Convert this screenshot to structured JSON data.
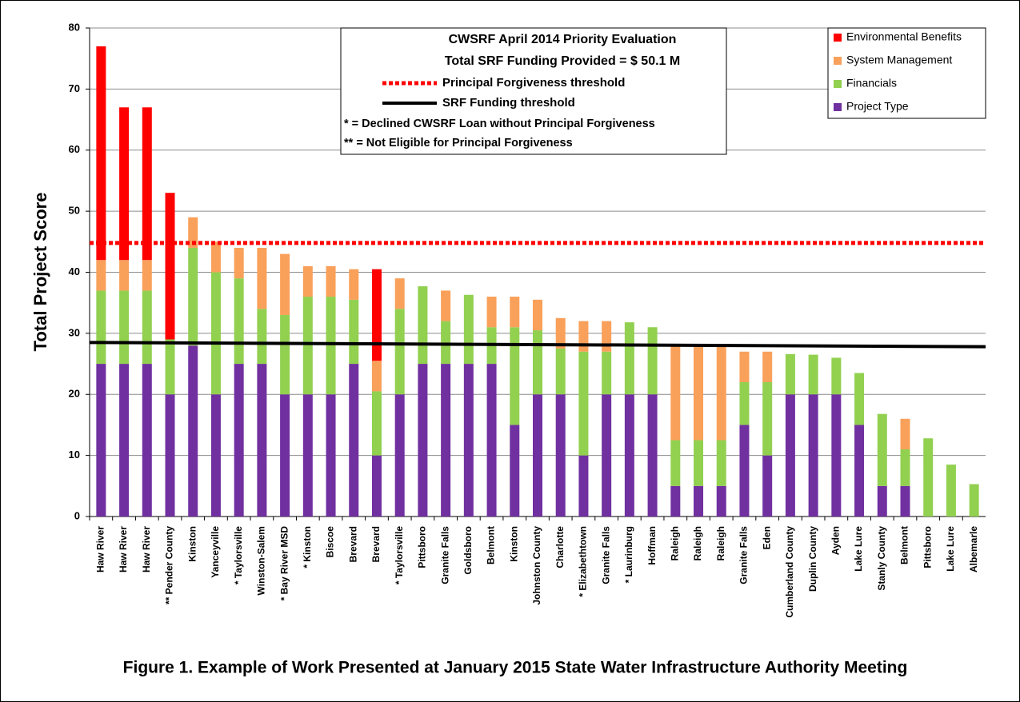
{
  "chart_data": {
    "type": "stacked_bar",
    "ylabel": "Total Project Score",
    "caption": "Figure 1. Example of Work Presented at January 2015 State Water Infrastructure Authority Meeting",
    "annotation": {
      "title": "CWSRF April 2014 Priority Evaluation",
      "subtitle": "Total SRF Funding Provided = $ 50.1 M",
      "notes": [
        "*   = Declined CWSRF Loan without Principal Forgiveness",
        "** = Not Eligible for Principal Forgiveness"
      ]
    },
    "categories": [
      "Haw River",
      "Haw River",
      "Haw River",
      "** Pender County",
      "Kinston",
      "Yanceyville",
      "* Taylorsville",
      "Winston-Salem",
      "* Bay River MSD",
      "* Kinston",
      "Biscoe",
      "Brevard",
      "Brevard",
      "* Taylorsville",
      "Pittsboro",
      "Granite Falls",
      "Goldsboro",
      "Belmont",
      "Kinston",
      "Johnston County",
      "Charlotte",
      "* Elizabethtown",
      "Granite Falls",
      "* Laurinburg",
      "Hoffman",
      "Raleigh",
      "Raleigh",
      "Raleigh",
      "Granite Falls",
      "Eden",
      "Cumberland County",
      "Duplin County",
      "Ayden",
      "Lake Lure",
      "Stanly County",
      "Belmont",
      "Pittsboro",
      "Lake Lure",
      "Albemarle"
    ],
    "series": [
      {
        "name": "Project Type",
        "color": "#7030a0",
        "values": [
          25,
          25,
          25,
          20,
          28,
          20,
          25,
          25,
          20,
          20,
          20,
          25,
          10,
          20,
          25,
          25,
          25,
          25,
          15,
          20,
          20,
          10,
          20,
          20,
          20,
          5,
          5,
          5,
          15,
          10,
          20,
          20,
          20,
          15,
          5,
          5,
          0,
          0,
          0
        ]
      },
      {
        "name": "Financials",
        "color": "#92d050",
        "values": [
          12,
          12,
          12,
          9,
          16,
          20,
          14,
          9,
          13,
          16,
          16,
          10.5,
          10.5,
          14,
          12.7,
          7,
          11.3,
          6,
          16,
          10.5,
          7.5,
          17,
          7,
          11.8,
          11,
          7.5,
          7.5,
          7.5,
          7,
          12,
          6.6,
          6.5,
          6,
          8.5,
          11.8,
          6,
          12.8,
          8.5,
          5.3
        ]
      },
      {
        "name": "System Management",
        "color": "#f9a05a",
        "values": [
          5,
          5,
          5,
          0,
          5,
          5,
          5,
          10,
          10,
          5,
          5,
          5,
          5,
          5,
          0,
          5,
          0,
          5,
          5,
          5,
          5,
          5,
          5,
          0,
          0,
          15.5,
          15.5,
          15.5,
          5,
          5,
          0,
          0,
          0,
          0,
          0,
          5,
          0,
          0,
          0
        ]
      },
      {
        "name": "Environmental Benefits",
        "color": "#ff0000",
        "values": [
          35,
          25,
          25,
          24,
          0,
          0,
          0,
          0,
          0,
          0,
          0,
          0,
          15,
          0,
          0,
          0,
          0,
          0,
          0,
          0,
          0,
          0,
          0,
          0,
          0,
          0,
          0,
          0,
          0,
          0,
          0,
          0,
          0,
          0,
          0,
          0,
          0,
          0,
          0
        ]
      }
    ],
    "thresholds": [
      {
        "name": "Principal Forgiveness threshold",
        "color": "#ff0000",
        "dashed": true,
        "values": [
          44.8,
          44.8
        ]
      },
      {
        "name": "SRF Funding threshold",
        "color": "#000000",
        "dashed": false,
        "values": [
          28.5,
          27.8
        ]
      }
    ],
    "ylim": [
      0,
      80
    ],
    "yticks": [
      0,
      10,
      20,
      30,
      40,
      50,
      60,
      70,
      80
    ],
    "grid": true,
    "legend": "top-right"
  }
}
